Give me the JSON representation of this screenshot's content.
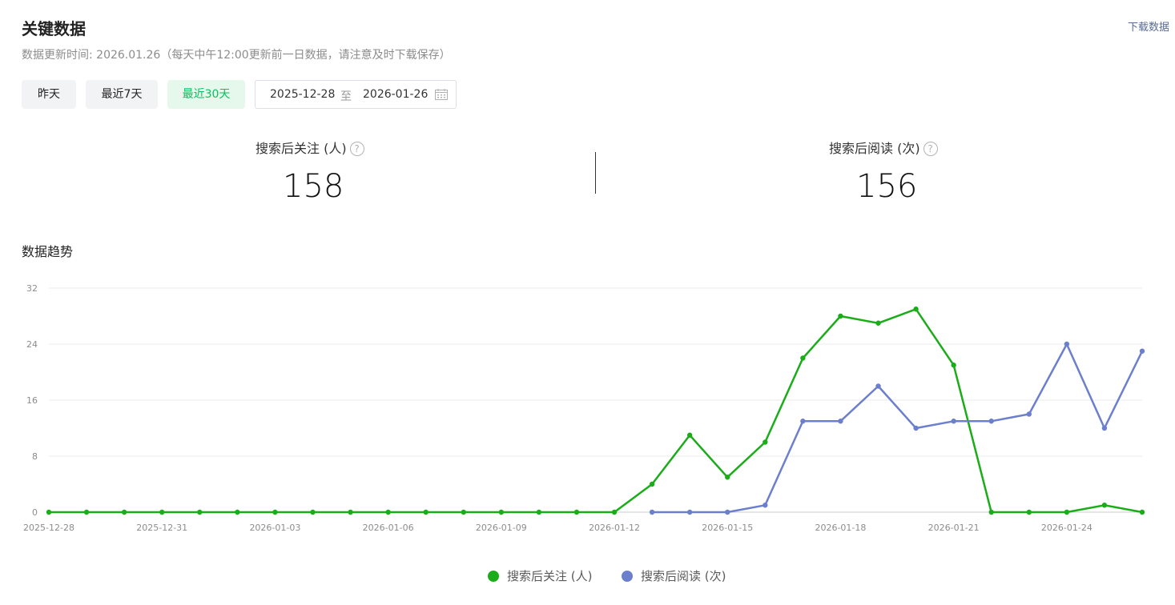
{
  "header": {
    "title": "关键数据",
    "subtitle": "数据更新时间: 2026.01.26（每天中午12:00更新前一日数据，请注意及时下载保存）",
    "download_label": "下载数据"
  },
  "range_buttons": [
    {
      "label": "昨天",
      "active": false
    },
    {
      "label": "最近7天",
      "active": false
    },
    {
      "label": "最近30天",
      "active": true
    }
  ],
  "date_range": {
    "start": "2025-12-28",
    "separator": "至",
    "end": "2026-01-26"
  },
  "metrics": [
    {
      "label": "搜索后关注 (人)",
      "value": "158",
      "help": "?"
    },
    {
      "label": "搜索后阅读 (次)",
      "value": "156",
      "help": "?"
    }
  ],
  "trend_title": "数据趋势",
  "chart_data": {
    "type": "line",
    "title": "",
    "xlabel": "",
    "ylabel": "",
    "ylim": [
      0,
      32
    ],
    "yticks": [
      0,
      8,
      16,
      24,
      32
    ],
    "grid": true,
    "legend_position": "bottom-center",
    "x": [
      "2025-12-28",
      "2025-12-29",
      "2025-12-30",
      "2025-12-31",
      "2026-01-01",
      "2026-01-02",
      "2026-01-03",
      "2026-01-04",
      "2026-01-05",
      "2026-01-06",
      "2026-01-07",
      "2026-01-08",
      "2026-01-09",
      "2026-01-10",
      "2026-01-11",
      "2026-01-12",
      "2026-01-13",
      "2026-01-14",
      "2026-01-15",
      "2026-01-16",
      "2026-01-17",
      "2026-01-18",
      "2026-01-19",
      "2026-01-20",
      "2026-01-21",
      "2026-01-22",
      "2026-01-23",
      "2026-01-24",
      "2026-01-25",
      "2026-01-26"
    ],
    "x_tick_labels": [
      "2025-12-28",
      "2025-12-31",
      "2026-01-03",
      "2026-01-06",
      "2026-01-09",
      "2026-01-12",
      "2026-01-15",
      "2026-01-18",
      "2026-01-21",
      "2026-01-24"
    ],
    "series": [
      {
        "name": "搜索后关注 (人)",
        "color": "#1aad19",
        "values": [
          0,
          0,
          0,
          0,
          0,
          0,
          0,
          0,
          0,
          0,
          0,
          0,
          0,
          0,
          0,
          0,
          4,
          11,
          5,
          10,
          22,
          28,
          27,
          29,
          21,
          0,
          0,
          0,
          1,
          0
        ]
      },
      {
        "name": "搜索后阅读 (次)",
        "color": "#6b7fcc",
        "values": [
          null,
          null,
          null,
          null,
          null,
          null,
          null,
          null,
          null,
          null,
          null,
          null,
          null,
          null,
          null,
          null,
          0,
          0,
          0,
          1,
          13,
          13,
          18,
          12,
          13,
          13,
          14,
          24,
          12,
          23
        ]
      }
    ]
  }
}
